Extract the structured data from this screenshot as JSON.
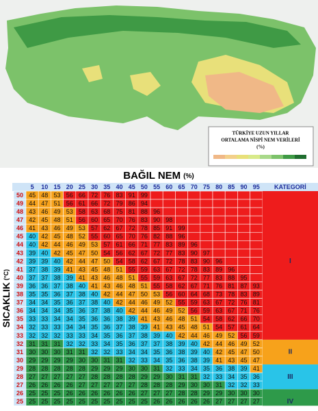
{
  "map": {
    "title_lines": [
      "TÜRKİYE UZUN YILLAR",
      "ORTALAMA NİSPİ NEM VERİLERİ",
      "(%)"
    ]
  },
  "table": {
    "title": "BAĞIL NEM",
    "title_unit": "(%)",
    "row_header": "SICAKLIK",
    "row_header_unit": "(°C)",
    "category_header": "KATEGORİ",
    "humidity": [
      5,
      10,
      15,
      20,
      25,
      30,
      35,
      40,
      45,
      50,
      55,
      60,
      65,
      70,
      75,
      80,
      85,
      90,
      95
    ],
    "categories": [
      "I",
      "II",
      "III",
      "IV"
    ],
    "rows": [
      {
        "temp": 50,
        "values": [
          45,
          48,
          53,
          56,
          66,
          72,
          76,
          83,
          91,
          99
        ]
      },
      {
        "temp": 49,
        "values": [
          44,
          47,
          51,
          56,
          61,
          66,
          72,
          79,
          86,
          94
        ]
      },
      {
        "temp": 48,
        "values": [
          43,
          46,
          49,
          53,
          58,
          63,
          68,
          75,
          81,
          88,
          96
        ]
      },
      {
        "temp": 47,
        "values": [
          42,
          45,
          48,
          51,
          56,
          60,
          65,
          70,
          76,
          83,
          90,
          98
        ]
      },
      {
        "temp": 46,
        "values": [
          41,
          43,
          46,
          49,
          53,
          57,
          62,
          67,
          72,
          78,
          85,
          91,
          99
        ]
      },
      {
        "temp": 45,
        "values": [
          40,
          42,
          45,
          48,
          52,
          55,
          60,
          65,
          70,
          76,
          82,
          88,
          96
        ]
      },
      {
        "temp": 44,
        "values": [
          40,
          42,
          44,
          46,
          49,
          53,
          57,
          61,
          66,
          71,
          77,
          83,
          89,
          96
        ]
      },
      {
        "temp": 43,
        "values": [
          39,
          40,
          42,
          45,
          47,
          50,
          54,
          56,
          62,
          67,
          72,
          77,
          83,
          90,
          97
        ]
      },
      {
        "temp": 42,
        "values": [
          39,
          39,
          40,
          42,
          44,
          47,
          50,
          54,
          58,
          62,
          67,
          72,
          78,
          83,
          90,
          96
        ]
      },
      {
        "temp": 41,
        "values": [
          37,
          38,
          39,
          41,
          43,
          45,
          48,
          51,
          55,
          59,
          63,
          67,
          72,
          78,
          83,
          89,
          96
        ]
      },
      {
        "temp": 40,
        "values": [
          37,
          37,
          38,
          39,
          41,
          43,
          46,
          48,
          51,
          55,
          59,
          63,
          67,
          72,
          77,
          83,
          88,
          95
        ]
      },
      {
        "temp": 39,
        "values": [
          36,
          36,
          37,
          38,
          40,
          41,
          43,
          46,
          48,
          51,
          55,
          58,
          62,
          67,
          71,
          76,
          81,
          87,
          93
        ]
      },
      {
        "temp": 38,
        "values": [
          35,
          35,
          36,
          37,
          38,
          40,
          42,
          44,
          47,
          50,
          53,
          56,
          60,
          64,
          68,
          73,
          78,
          83,
          89
        ]
      },
      {
        "temp": 37,
        "values": [
          34,
          34,
          35,
          36,
          37,
          38,
          40,
          42,
          44,
          46,
          49,
          52,
          55,
          59,
          63,
          67,
          72,
          76,
          81
        ]
      },
      {
        "temp": 36,
        "values": [
          34,
          34,
          34,
          35,
          36,
          37,
          38,
          40,
          42,
          44,
          46,
          49,
          52,
          56,
          59,
          63,
          67,
          71,
          76
        ]
      },
      {
        "temp": 35,
        "values": [
          33,
          33,
          34,
          34,
          35,
          36,
          36,
          38,
          39,
          41,
          43,
          46,
          48,
          51,
          54,
          58,
          62,
          66,
          70
        ]
      },
      {
        "temp": 34,
        "values": [
          32,
          33,
          33,
          34,
          34,
          35,
          36,
          37,
          38,
          39,
          41,
          43,
          45,
          48,
          51,
          54,
          57,
          61,
          64
        ]
      },
      {
        "temp": 33,
        "values": [
          32,
          32,
          32,
          33,
          33,
          34,
          35,
          36,
          37,
          38,
          39,
          40,
          42,
          44,
          46,
          49,
          52,
          56,
          59
        ]
      },
      {
        "temp": 32,
        "values": [
          31,
          31,
          31,
          32,
          32,
          33,
          34,
          35,
          36,
          37,
          37,
          38,
          39,
          40,
          42,
          44,
          46,
          49,
          52
        ]
      },
      {
        "temp": 31,
        "values": [
          30,
          30,
          30,
          31,
          31,
          32,
          32,
          33,
          34,
          34,
          35,
          36,
          38,
          39,
          40,
          42,
          45,
          47,
          50
        ]
      },
      {
        "temp": 30,
        "values": [
          29,
          29,
          29,
          29,
          30,
          30,
          31,
          31,
          32,
          33,
          34,
          35,
          36,
          38,
          39,
          41,
          43,
          45,
          47
        ]
      },
      {
        "temp": 29,
        "values": [
          28,
          28,
          28,
          28,
          28,
          29,
          29,
          29,
          30,
          30,
          31,
          32,
          33,
          34,
          35,
          36,
          38,
          39,
          41
        ]
      },
      {
        "temp": 28,
        "values": [
          27,
          27,
          27,
          27,
          27,
          28,
          28,
          28,
          28,
          29,
          29,
          30,
          31,
          31,
          32,
          33,
          34,
          35,
          36
        ]
      },
      {
        "temp": 27,
        "values": [
          26,
          26,
          26,
          26,
          27,
          27,
          27,
          27,
          27,
          28,
          28,
          28,
          29,
          30,
          30,
          31,
          32,
          32,
          33
        ]
      },
      {
        "temp": 26,
        "values": [
          25,
          25,
          25,
          26,
          26,
          26,
          26,
          26,
          26,
          27,
          27,
          27,
          28,
          28,
          29,
          29,
          30,
          30,
          30
        ]
      },
      {
        "temp": 25,
        "values": [
          25,
          25,
          25,
          25,
          25,
          25,
          25,
          25,
          25,
          25,
          26,
          26,
          26,
          26,
          26,
          27,
          27,
          27,
          27
        ]
      }
    ]
  }
}
